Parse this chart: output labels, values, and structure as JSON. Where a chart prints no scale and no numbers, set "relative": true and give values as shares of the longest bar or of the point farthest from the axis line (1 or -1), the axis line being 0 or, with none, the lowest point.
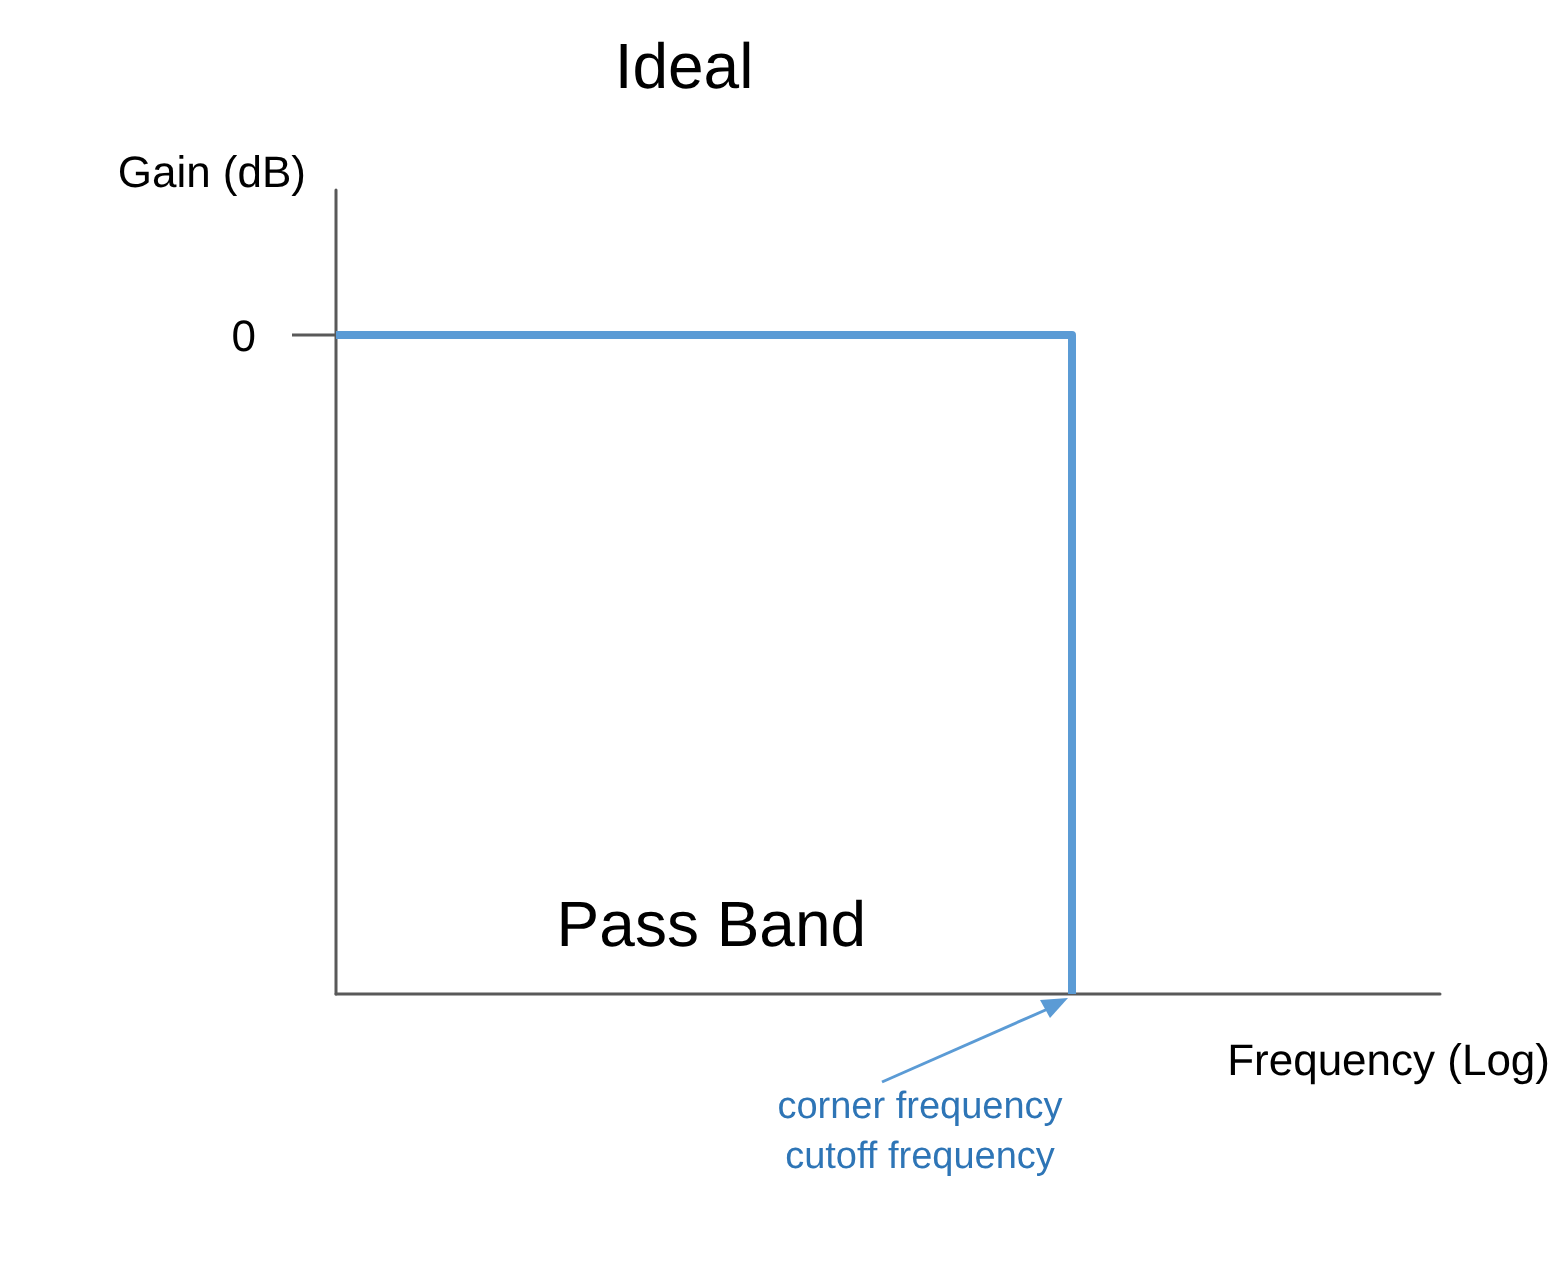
{
  "chart_data": {
    "type": "step",
    "title": "Ideal",
    "xlabel": "Frequency (Log)",
    "ylabel": "Gain (dB)",
    "categories": [
      null,
      null,
      null
    ],
    "series": [
      {
        "color": "#5b9bd5",
        "values": [
          1,
          1,
          0
        ]
      }
    ],
    "relative": true,
    "marker": "none",
    "annotations": [
      "0",
      "Pass Band",
      "corner frequency\ncutoff frequency"
    ]
  }
}
